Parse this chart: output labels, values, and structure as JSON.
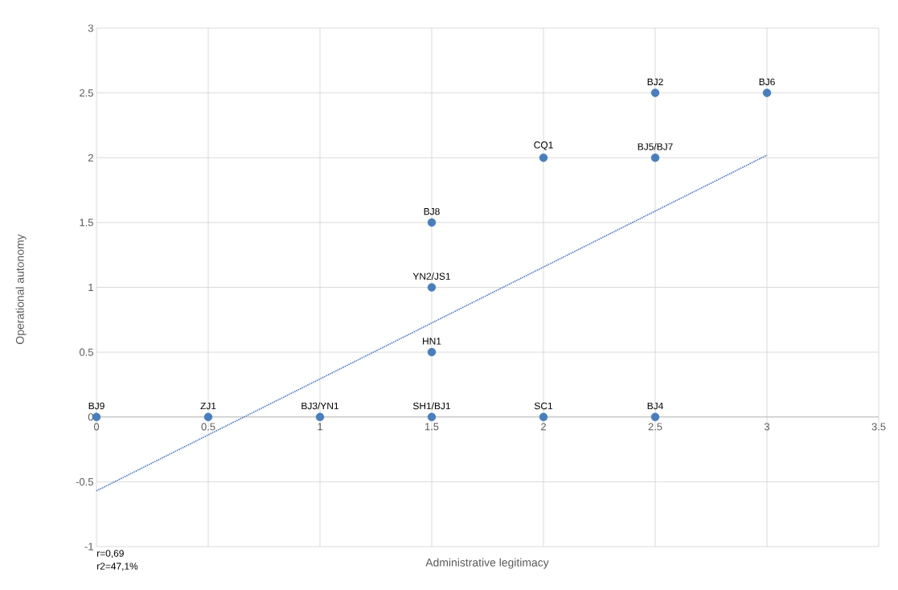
{
  "chart_data": {
    "type": "scatter",
    "xlabel": "Administrative legitimacy",
    "ylabel": "Operational autonomy",
    "xlim": [
      0,
      3.5
    ],
    "ylim": [
      -1,
      3
    ],
    "xticks": [
      0,
      0.5,
      1,
      1.5,
      2,
      2.5,
      3,
      3.5
    ],
    "yticks": [
      -1,
      -0.5,
      0,
      0.5,
      1,
      1.5,
      2,
      2.5,
      3
    ],
    "grid": true,
    "series": [
      {
        "color": "#4a7ebb",
        "x": [
          0,
          0.5,
          1,
          1.5,
          2,
          2.5,
          1.5,
          1.5,
          1.5,
          2,
          2.5,
          2.5,
          3
        ],
        "values": [
          0,
          0,
          0,
          0,
          0,
          0,
          0.5,
          1,
          1.5,
          2,
          2,
          2.5,
          2.5
        ]
      },
      {
        "type": "line",
        "color": "#4a7ebb",
        "line_style": "dotted",
        "x": [
          0,
          3
        ],
        "values": [
          -0.57,
          2.02
        ]
      }
    ],
    "annotations": [
      {
        "text": "BJ9",
        "x": 0,
        "y": 0
      },
      {
        "text": "ZJ1",
        "x": 0.5,
        "y": 0
      },
      {
        "text": "BJ3/YN1",
        "x": 1,
        "y": 0
      },
      {
        "text": "SH1/BJ1",
        "x": 1.5,
        "y": 0
      },
      {
        "text": "SC1",
        "x": 2,
        "y": 0
      },
      {
        "text": "BJ4",
        "x": 2.5,
        "y": 0
      },
      {
        "text": "HN1",
        "x": 1.5,
        "y": 0.5
      },
      {
        "text": "YN2/JS1",
        "x": 1.5,
        "y": 1
      },
      {
        "text": "BJ8",
        "x": 1.5,
        "y": 1.5
      },
      {
        "text": "CQ1",
        "x": 2,
        "y": 2
      },
      {
        "text": "BJ5/BJ7",
        "x": 2.5,
        "y": 2
      },
      {
        "text": "BJ2",
        "x": 2.5,
        "y": 2.5
      },
      {
        "text": "BJ6",
        "x": 3,
        "y": 2.5
      },
      "r=0,69",
      "r2=47,1%"
    ]
  }
}
